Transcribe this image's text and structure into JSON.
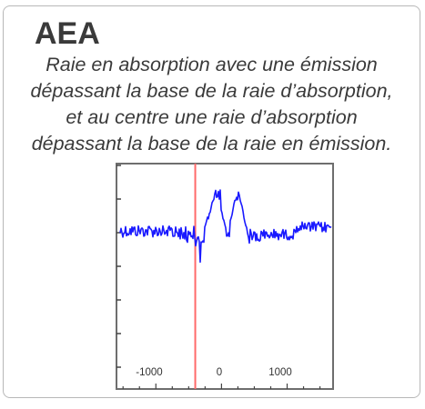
{
  "card": {
    "code": "AEA",
    "description_lines": [
      "Raie en absorption avec une émission",
      "dépassant la base de la raie d’absorption,",
      "et au centre une raie d’absorption",
      "dépassant la base de la raie en émission."
    ]
  },
  "chart_data": {
    "type": "line",
    "x_ticks": [
      "-1000",
      "0",
      "1000"
    ],
    "xlim": [
      -1600,
      1700
    ],
    "series_color": "#1a1aff",
    "marker_color": "#ff6a6a",
    "marker_x": -400
  }
}
